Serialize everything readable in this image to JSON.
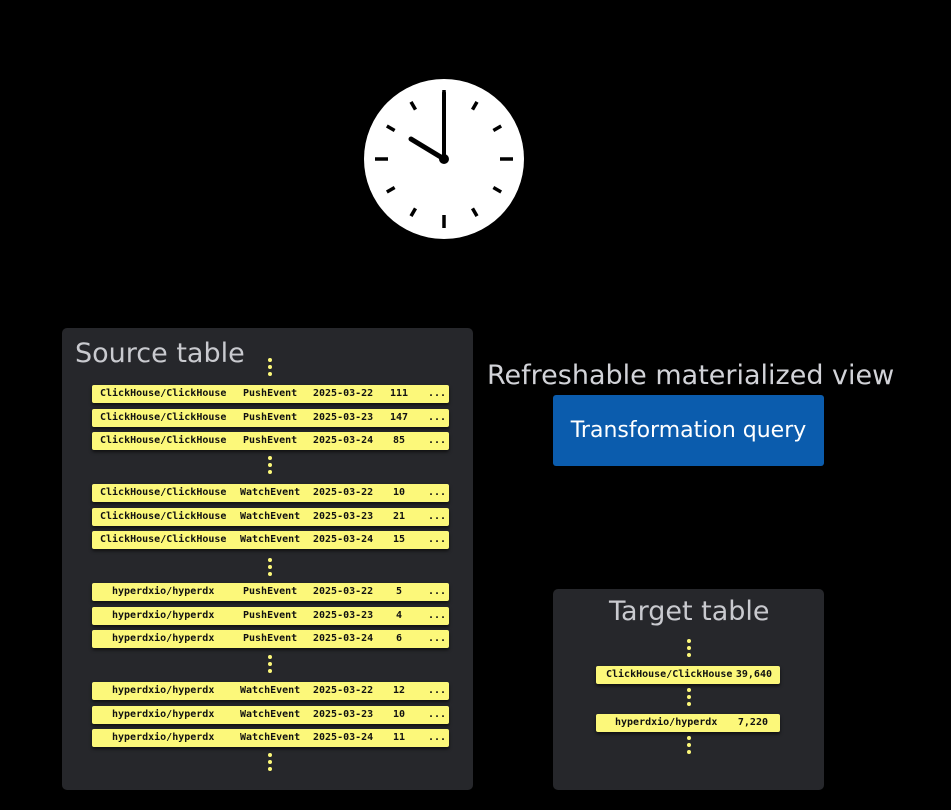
{
  "clock": {
    "icon": "clock-icon",
    "time_shown": "10:00"
  },
  "source_table": {
    "title": "Source table",
    "groups": [
      [
        [
          "ClickHouse/ClickHouse",
          "PushEvent",
          "2025-03-22",
          "111",
          "..."
        ],
        [
          "ClickHouse/ClickHouse",
          "PushEvent",
          "2025-03-23",
          "147",
          "..."
        ],
        [
          "ClickHouse/ClickHouse",
          "PushEvent",
          "2025-03-24",
          "85",
          "..."
        ]
      ],
      [
        [
          "ClickHouse/ClickHouse",
          "WatchEvent",
          "2025-03-22",
          "10",
          "..."
        ],
        [
          "ClickHouse/ClickHouse",
          "WatchEvent",
          "2025-03-23",
          "21",
          "..."
        ],
        [
          "ClickHouse/ClickHouse",
          "WatchEvent",
          "2025-03-24",
          "15",
          "..."
        ]
      ],
      [
        [
          "hyperdxio/hyperdx",
          "PushEvent",
          "2025-03-22",
          "5",
          "..."
        ],
        [
          "hyperdxio/hyperdx",
          "PushEvent",
          "2025-03-23",
          "4",
          "..."
        ],
        [
          "hyperdxio/hyperdx",
          "PushEvent",
          "2025-03-24",
          "6",
          "..."
        ]
      ],
      [
        [
          "hyperdxio/hyperdx",
          "WatchEvent",
          "2025-03-22",
          "12",
          "..."
        ],
        [
          "hyperdxio/hyperdx",
          "WatchEvent",
          "2025-03-23",
          "10",
          "..."
        ],
        [
          "hyperdxio/hyperdx",
          "WatchEvent",
          "2025-03-24",
          "11",
          "..."
        ]
      ]
    ]
  },
  "materialized_view": {
    "label": "Refreshable materialized view",
    "query_label": "Transformation query",
    "query_color": "#0b5cad"
  },
  "target_table": {
    "title": "Target table",
    "rows": [
      [
        "ClickHouse/ClickHouse",
        "39,640"
      ],
      [
        "hyperdxio/hyperdx",
        "7,220"
      ]
    ]
  },
  "colors": {
    "row": "#fcf87a",
    "panel": "#26272b",
    "background": "#000000"
  }
}
